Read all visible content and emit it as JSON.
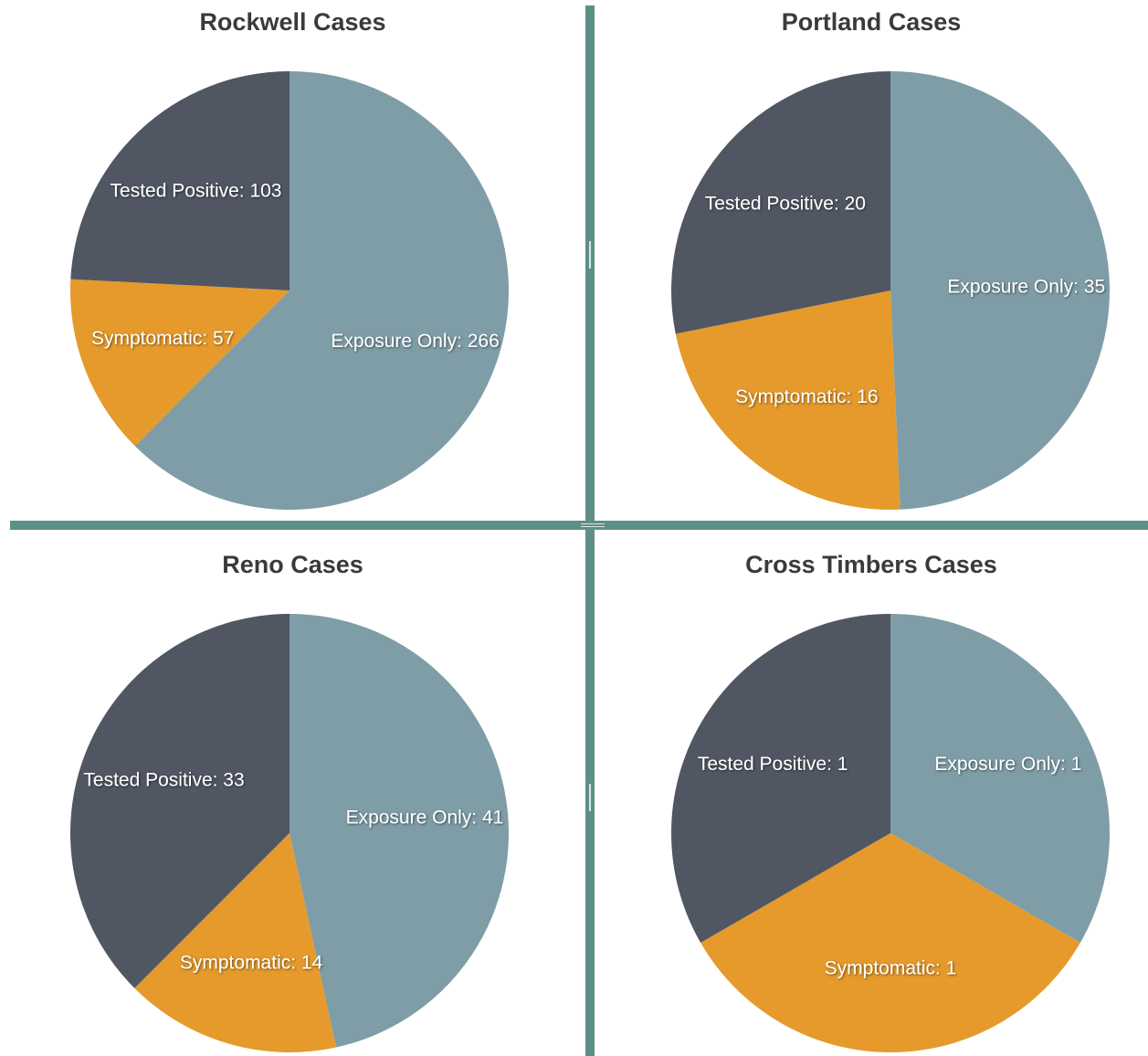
{
  "colors": {
    "tested_positive": "#515663",
    "symptomatic": "#e59a2b",
    "exposure_only": "#7f9da7",
    "splitter": "#5e8f86"
  },
  "chart_data": [
    {
      "type": "pie",
      "title": "Rockwell Cases",
      "slices": [
        {
          "label": "Exposure Only",
          "value": 266,
          "display": "Exposure Only: 266"
        },
        {
          "label": "Symptomatic",
          "value": 57,
          "display": "Symptomatic: 57"
        },
        {
          "label": "Tested Positive",
          "value": 103,
          "display": "Tested Positive: 103"
        }
      ]
    },
    {
      "type": "pie",
      "title": "Portland Cases",
      "slices": [
        {
          "label": "Exposure Only",
          "value": 35,
          "display": "Exposure Only: 35"
        },
        {
          "label": "Symptomatic",
          "value": 16,
          "display": "Symptomatic: 16"
        },
        {
          "label": "Tested Positive",
          "value": 20,
          "display": "Tested Positive: 20"
        }
      ]
    },
    {
      "type": "pie",
      "title": "Reno Cases",
      "slices": [
        {
          "label": "Exposure Only",
          "value": 41,
          "display": "Exposure Only: 41"
        },
        {
          "label": "Symptomatic",
          "value": 14,
          "display": "Symptomatic: 14"
        },
        {
          "label": "Tested Positive",
          "value": 33,
          "display": "Tested Positive: 33"
        }
      ]
    },
    {
      "type": "pie",
      "title": "Cross Timbers Cases",
      "slices": [
        {
          "label": "Exposure Only",
          "value": 1,
          "display": "Exposure Only: 1"
        },
        {
          "label": "Symptomatic",
          "value": 1,
          "display": "Symptomatic: 1"
        },
        {
          "label": "Tested Positive",
          "value": 1,
          "display": "Tested Positive: 1"
        }
      ]
    }
  ]
}
